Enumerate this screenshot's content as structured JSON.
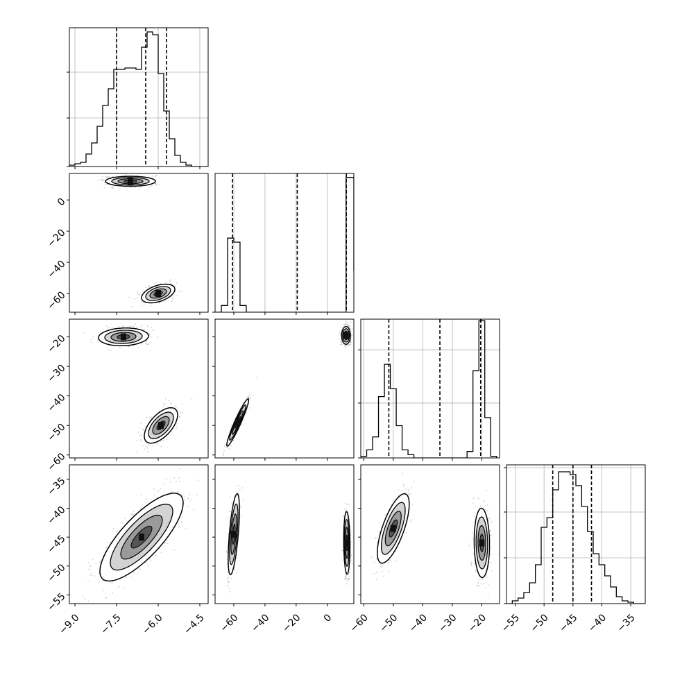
{
  "chart_data": {
    "type": "corner",
    "parameters": [
      {
        "range": [
          -9.2,
          -4.2
        ],
        "ticks": [
          -9.0,
          -7.5,
          -6.0,
          -4.5
        ],
        "tick_labels": [
          "−9.0",
          "−7.5",
          "−6.0",
          "−4.5"
        ]
      },
      {
        "range": [
          -72,
          17
        ],
        "ticks": [
          -60,
          -40,
          -20,
          0
        ],
        "tick_labels": [
          "−60",
          "−40",
          "−20",
          "0"
        ]
      },
      {
        "range": [
          -61,
          -14
        ],
        "ticks": [
          -60,
          -50,
          -40,
          -30,
          -20
        ],
        "tick_labels": [
          "−60",
          "−50",
          "−40",
          "−30",
          "−20"
        ]
      },
      {
        "range": [
          -56.5,
          -32.5
        ],
        "ticks": [
          -55,
          -50,
          -45,
          -40,
          -35
        ],
        "tick_labels": [
          "−55",
          "−50",
          "−45",
          "−40",
          "−35"
        ]
      }
    ],
    "histograms": [
      {
        "quantiles": [
          -7.5,
          -6.45,
          -5.7
        ],
        "bins_x": [
          -9.2,
          -9.0,
          -8.8,
          -8.6,
          -8.4,
          -8.2,
          -8.0,
          -7.8,
          -7.6,
          -7.4,
          -7.2,
          -7.0,
          -6.8,
          -6.6,
          -6.4,
          -6.2,
          -6.0,
          -5.8,
          -5.6,
          -5.4,
          -5.2,
          -5.0,
          -4.8,
          -4.6,
          -4.4,
          -4.2
        ],
        "counts": [
          0.01,
          0.02,
          0.03,
          0.09,
          0.17,
          0.29,
          0.44,
          0.56,
          0.7,
          0.7,
          0.71,
          0.71,
          0.7,
          0.86,
          0.97,
          0.95,
          0.67,
          0.4,
          0.2,
          0.08,
          0.03,
          0.01,
          0.0,
          0.0,
          0.0
        ],
        "y_ticks": [
          0.35,
          0.68
        ],
        "peak": 1.0
      },
      {
        "quantiles": [
          -60.8,
          -19.3,
          12.2
        ],
        "bins_x": [
          -72,
          -68,
          -64,
          -60,
          -56,
          -52,
          -48,
          -44,
          -40,
          -36,
          -32,
          -28,
          -24,
          -20,
          -16,
          -12,
          -8,
          -4,
          0,
          4,
          8,
          12,
          17
        ],
        "counts": [
          0.0,
          0.05,
          0.55,
          0.52,
          0.05,
          0.0,
          0.0,
          0.0,
          0.0,
          0.0,
          0.0,
          0.0,
          0.0,
          0.0,
          0.0,
          0.0,
          0.0,
          0.0,
          0.0,
          0.0,
          0.0,
          1.0,
          0.31
        ],
        "y_ticks": [],
        "peak": 1.03
      },
      {
        "quantiles": [
          -51.5,
          -34.2,
          -20.4
        ],
        "bins_x": [
          -61,
          -59,
          -57,
          -55,
          -53,
          -51,
          -49,
          -47,
          -45,
          -43,
          -41,
          -39,
          -37,
          -35,
          -33,
          -31,
          -29,
          -27,
          -25,
          -23,
          -21,
          -19,
          -17,
          -15
        ],
        "counts": [
          0.01,
          0.05,
          0.13,
          0.38,
          0.58,
          0.43,
          0.2,
          0.05,
          0.02,
          0.0,
          0.0,
          0.0,
          0.0,
          0.0,
          0.0,
          0.0,
          0.0,
          0.0,
          0.04,
          0.54,
          0.85,
          0.25,
          0.01
        ],
        "y_ticks": [
          0.34,
          0.67
        ],
        "peak": 0.86
      },
      {
        "quantiles": [
          -48.5,
          -45.0,
          -41.8
        ],
        "bins_x": [
          -56.5,
          -55.5,
          -54.5,
          -53.5,
          -52.5,
          -51.5,
          -50.5,
          -49.5,
          -48.5,
          -47.5,
          -46.5,
          -45.5,
          -44.5,
          -43.5,
          -42.5,
          -41.5,
          -40.5,
          -39.5,
          -38.5,
          -37.5,
          -36.5,
          -35.5,
          -34.5,
          -33.5,
          -32.5
        ],
        "counts": [
          0.0,
          0.02,
          0.04,
          0.08,
          0.15,
          0.28,
          0.55,
          0.62,
          0.82,
          0.95,
          0.95,
          0.93,
          0.85,
          0.7,
          0.52,
          0.36,
          0.28,
          0.2,
          0.12,
          0.05,
          0.02,
          0.01,
          0.0,
          0.0
        ],
        "y_ticks": [
          0.33,
          0.66,
          0.98
        ],
        "peak": 1.0
      }
    ],
    "pairs": [
      {
        "row": 1,
        "col": 0,
        "modes": [
          {
            "cx": -7.0,
            "cy": 12.0,
            "sx": 0.45,
            "sy": 1.6,
            "rho": 0.0,
            "w": 0.5
          },
          {
            "cx": -6.0,
            "cy": -60.0,
            "sx": 0.3,
            "sy": 3.0,
            "rho": 0.45,
            "w": 0.5
          }
        ]
      },
      {
        "row": 2,
        "col": 0,
        "modes": [
          {
            "cx": -7.25,
            "cy": -20.0,
            "sx": 0.45,
            "sy": 1.5,
            "rho": 0.1,
            "w": 0.5
          },
          {
            "cx": -5.9,
            "cy": -50.0,
            "sx": 0.3,
            "sy": 3.0,
            "rho": 0.6,
            "w": 0.5
          }
        ]
      },
      {
        "row": 2,
        "col": 1,
        "modes": [
          {
            "cx": -57.5,
            "cy": -49.0,
            "sx": 3.5,
            "sy": 4.0,
            "rho": 0.95,
            "w": 0.5
          },
          {
            "cx": 12.0,
            "cy": -19.5,
            "sx": 1.4,
            "sy": 1.5,
            "rho": 0.0,
            "w": 0.5
          }
        ]
      },
      {
        "row": 3,
        "col": 0,
        "modes": [
          {
            "cx": -6.6,
            "cy": -45.0,
            "sx": 0.75,
            "sy": 3.8,
            "rho": 0.78,
            "w": 1.0
          }
        ]
      },
      {
        "row": 3,
        "col": 1,
        "modes": [
          {
            "cx": -60.0,
            "cy": -44.5,
            "sx": 1.8,
            "sy": 3.5,
            "rho": 0.6,
            "w": 0.5
          },
          {
            "cx": 12.5,
            "cy": -46.0,
            "sx": 1.0,
            "sy": 2.7,
            "rho": -0.1,
            "w": 0.5
          }
        ]
      },
      {
        "row": 3,
        "col": 2,
        "modes": [
          {
            "cx": -50.0,
            "cy": -43.5,
            "sx": 2.7,
            "sy": 3.0,
            "rho": 0.7,
            "w": 0.5
          },
          {
            "cx": -20.0,
            "cy": -46.0,
            "sx": 1.3,
            "sy": 3.0,
            "rho": -0.05,
            "w": 0.5
          }
        ]
      }
    ],
    "grid": true,
    "colors": {
      "line": "#000000",
      "grid": "#b0b0b0",
      "points": "#000000",
      "fill_dark": "#111111"
    }
  }
}
